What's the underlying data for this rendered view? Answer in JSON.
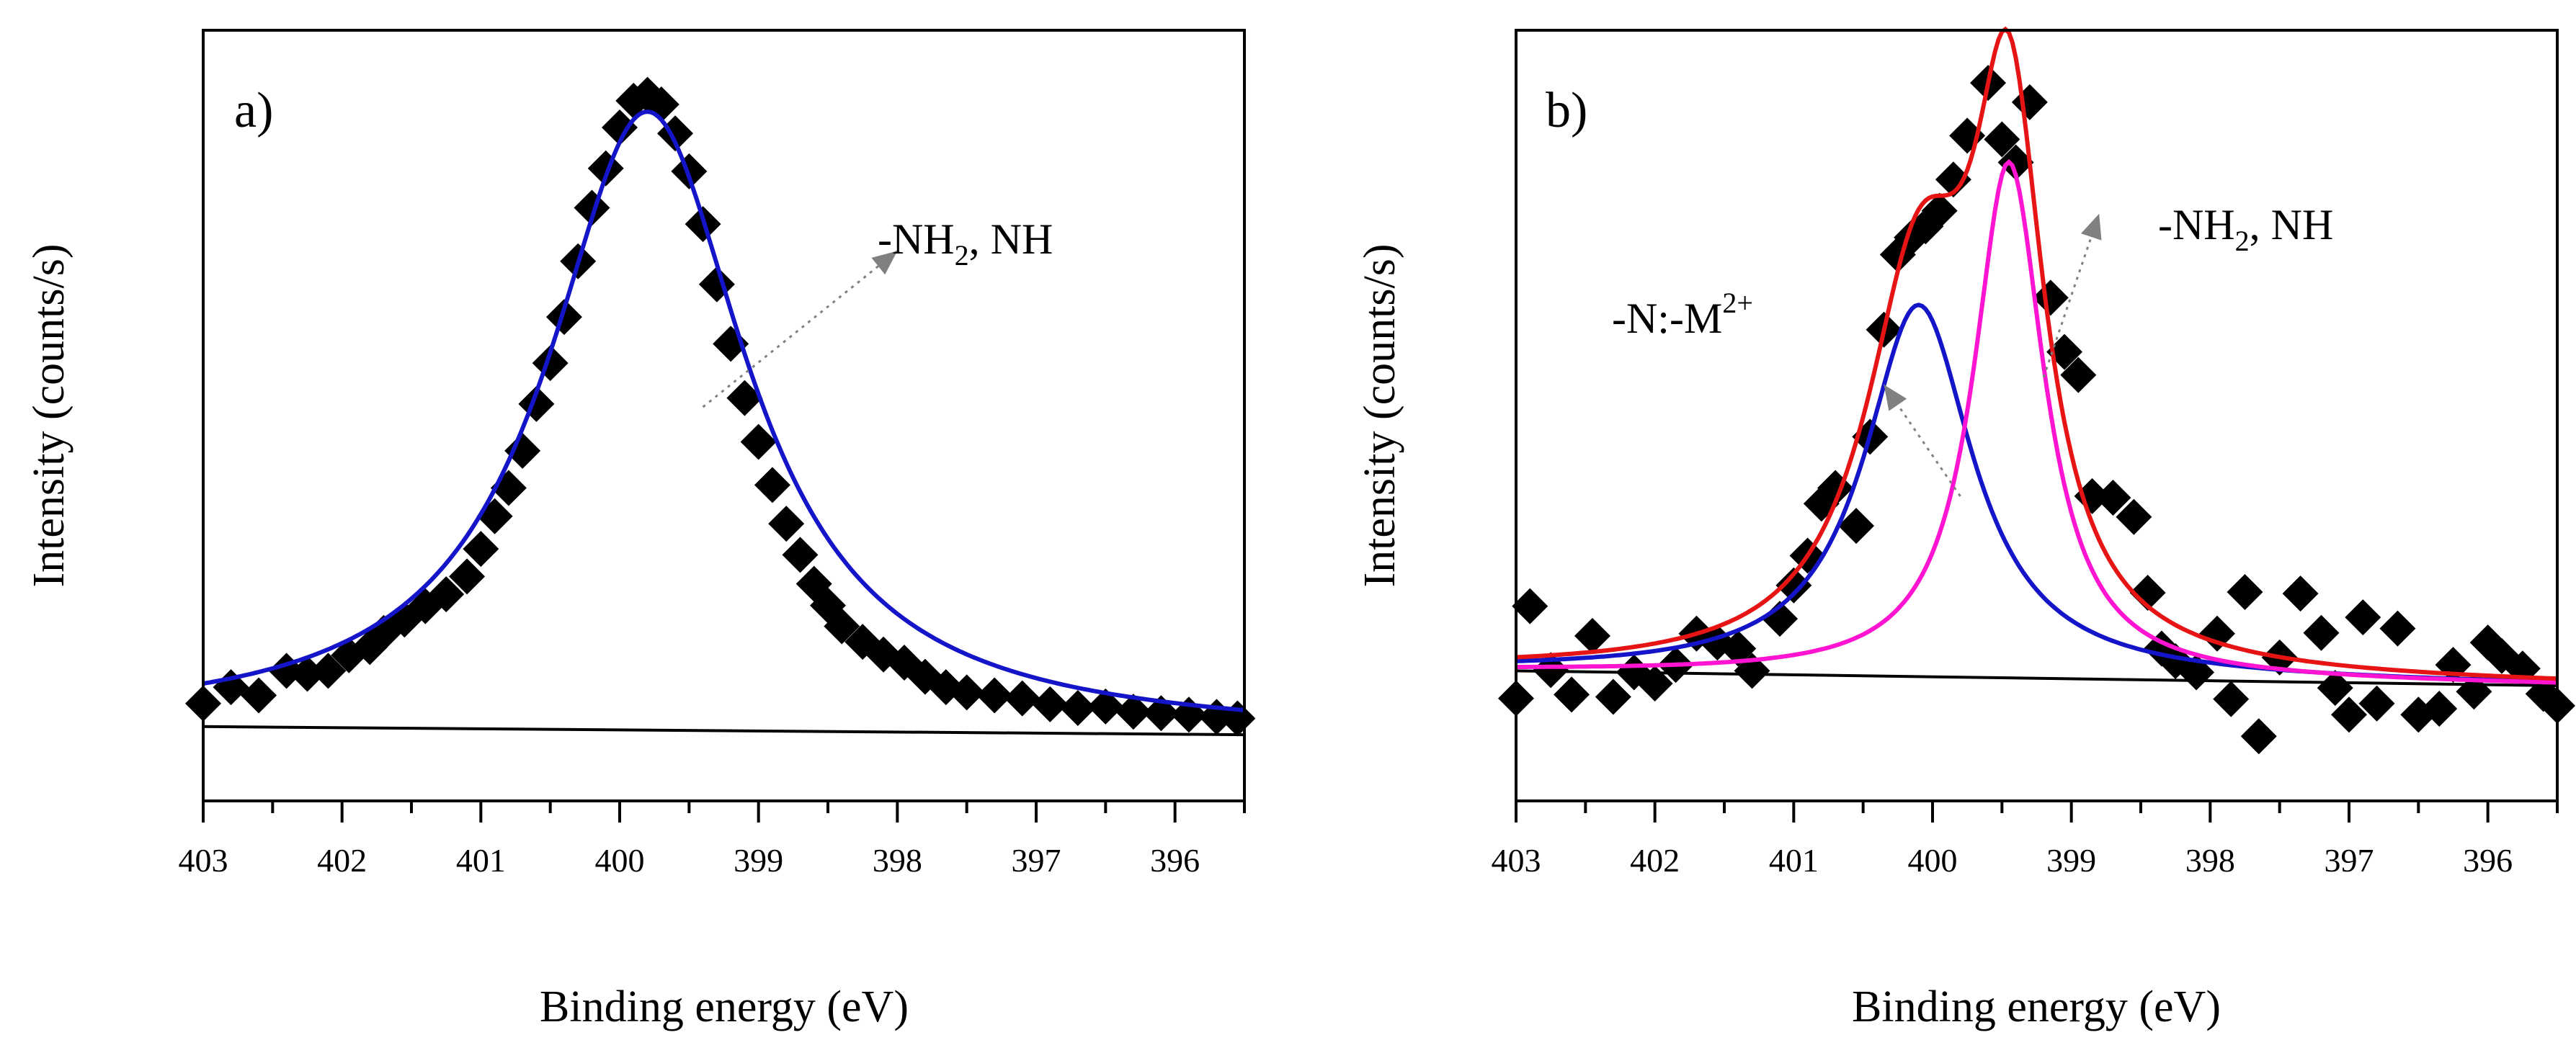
{
  "chart_data": [
    {
      "type": "scatter",
      "panel_label": "a)",
      "xlabel": "Binding energy (eV)",
      "ylabel": "Intensity (counts/s)",
      "xlim": [
        403,
        395.5
      ],
      "ylim": [
        0,
        1
      ],
      "x_ticks": [
        403,
        402,
        401,
        400,
        399,
        398,
        397,
        396
      ],
      "x_tick_labels": [
        "403",
        "402",
        "401",
        "400",
        "399",
        "398",
        "397",
        "396"
      ],
      "annotations": [
        {
          "main": "-NH",
          "sub": "2",
          "rest": ", NH",
          "from": [
            399.4,
            0.53
          ],
          "to": [
            398.0,
            0.74
          ]
        }
      ],
      "scatter_points": [
        [
          403.0,
          0.131
        ],
        [
          402.8,
          0.153
        ],
        [
          402.6,
          0.142
        ],
        [
          402.4,
          0.175
        ],
        [
          402.25,
          0.171
        ],
        [
          402.1,
          0.175
        ],
        [
          401.95,
          0.196
        ],
        [
          401.8,
          0.207
        ],
        [
          401.7,
          0.226
        ],
        [
          401.55,
          0.244
        ],
        [
          401.4,
          0.262
        ],
        [
          401.25,
          0.278
        ],
        [
          401.1,
          0.302
        ],
        [
          401.0,
          0.339
        ],
        [
          400.9,
          0.383
        ],
        [
          400.8,
          0.421
        ],
        [
          400.7,
          0.471
        ],
        [
          400.6,
          0.534
        ],
        [
          400.5,
          0.589
        ],
        [
          400.4,
          0.651
        ],
        [
          400.3,
          0.726
        ],
        [
          400.2,
          0.798
        ],
        [
          400.1,
          0.851
        ],
        [
          400.0,
          0.906
        ],
        [
          399.9,
          0.942
        ],
        [
          399.8,
          0.95
        ],
        [
          399.7,
          0.937
        ],
        [
          399.6,
          0.898
        ],
        [
          399.5,
          0.847
        ],
        [
          399.4,
          0.776
        ],
        [
          399.3,
          0.695
        ],
        [
          399.2,
          0.615
        ],
        [
          399.1,
          0.542
        ],
        [
          399.0,
          0.483
        ],
        [
          398.9,
          0.425
        ],
        [
          398.8,
          0.373
        ],
        [
          398.7,
          0.331
        ],
        [
          398.6,
          0.292
        ],
        [
          398.5,
          0.263
        ],
        [
          398.4,
          0.235
        ],
        [
          398.25,
          0.214
        ],
        [
          398.1,
          0.197
        ],
        [
          397.95,
          0.186
        ],
        [
          397.8,
          0.167
        ],
        [
          397.65,
          0.153
        ],
        [
          397.5,
          0.146
        ],
        [
          397.3,
          0.142
        ],
        [
          397.1,
          0.138
        ],
        [
          396.9,
          0.13
        ],
        [
          396.7,
          0.125
        ],
        [
          396.5,
          0.127
        ],
        [
          396.3,
          0.12
        ],
        [
          396.1,
          0.118
        ],
        [
          395.9,
          0.116
        ],
        [
          395.7,
          0.113
        ],
        [
          395.55,
          0.111
        ]
      ],
      "series": [
        {
          "name": "baseline",
          "color": "#000000",
          "x": [
            403.0,
            395.5
          ],
          "y": [
            0.1,
            0.089
          ]
        },
        {
          "name": "fit",
          "color": "#1414c8",
          "model": "lorentzian",
          "x_range": [
            403.0,
            395.5
          ],
          "center": 399.8,
          "fwhm": 1.75,
          "amplitude": 0.832
        }
      ]
    },
    {
      "type": "scatter",
      "panel_label": "b)",
      "xlabel": "Binding energy (eV)",
      "ylabel": "Intensity (counts/s)",
      "xlim": [
        403,
        395.5
      ],
      "ylim": [
        0,
        1
      ],
      "x_ticks": [
        403,
        402,
        401,
        400,
        399,
        398,
        397,
        396
      ],
      "x_tick_labels": [
        "403",
        "402",
        "401",
        "400",
        "399",
        "398",
        "397",
        "396"
      ],
      "annotations": [
        {
          "main": "-N:-M",
          "sup": "2+",
          "from": [
            399.8,
            0.41
          ],
          "to": [
            400.35,
            0.56
          ]
        },
        {
          "main": "-NH",
          "sub": "2",
          "rest": ", NH",
          "from": [
            399.2,
            0.57
          ],
          "to": [
            398.8,
            0.79
          ]
        }
      ],
      "scatter_points": [
        [
          403.0,
          0.138
        ],
        [
          402.9,
          0.262
        ],
        [
          402.75,
          0.176
        ],
        [
          402.6,
          0.143
        ],
        [
          402.45,
          0.222
        ],
        [
          402.3,
          0.14
        ],
        [
          402.15,
          0.173
        ],
        [
          402.0,
          0.158
        ],
        [
          401.85,
          0.183
        ],
        [
          401.7,
          0.225
        ],
        [
          401.55,
          0.213
        ],
        [
          401.4,
          0.205
        ],
        [
          401.3,
          0.175
        ],
        [
          401.1,
          0.245
        ],
        [
          401.0,
          0.29
        ],
        [
          400.9,
          0.33
        ],
        [
          400.8,
          0.4
        ],
        [
          400.7,
          0.421
        ],
        [
          400.55,
          0.37
        ],
        [
          400.45,
          0.49
        ],
        [
          400.35,
          0.634
        ],
        [
          400.25,
          0.735
        ],
        [
          400.15,
          0.758
        ],
        [
          400.05,
          0.773
        ],
        [
          399.95,
          0.794
        ],
        [
          399.85,
          0.836
        ],
        [
          399.75,
          0.895
        ],
        [
          399.6,
          0.966
        ],
        [
          399.5,
          0.89
        ],
        [
          399.4,
          0.859
        ],
        [
          399.3,
          0.94
        ],
        [
          399.15,
          0.677
        ],
        [
          399.05,
          0.604
        ],
        [
          398.95,
          0.573
        ],
        [
          398.85,
          0.41
        ],
        [
          398.7,
          0.408
        ],
        [
          398.55,
          0.382
        ],
        [
          398.45,
          0.28
        ],
        [
          398.35,
          0.205
        ],
        [
          398.25,
          0.188
        ],
        [
          398.1,
          0.173
        ],
        [
          397.95,
          0.225
        ],
        [
          397.85,
          0.137
        ],
        [
          397.75,
          0.281
        ],
        [
          397.65,
          0.087
        ],
        [
          397.5,
          0.193
        ],
        [
          397.35,
          0.279
        ],
        [
          397.2,
          0.226
        ],
        [
          397.1,
          0.152
        ],
        [
          397.0,
          0.116
        ],
        [
          396.9,
          0.247
        ],
        [
          396.8,
          0.131
        ],
        [
          396.65,
          0.232
        ],
        [
          396.5,
          0.116
        ],
        [
          396.35,
          0.124
        ],
        [
          396.25,
          0.183
        ],
        [
          396.1,
          0.147
        ],
        [
          396.0,
          0.213
        ],
        [
          395.9,
          0.195
        ],
        [
          395.75,
          0.178
        ],
        [
          395.6,
          0.144
        ],
        [
          395.5,
          0.128
        ]
      ],
      "series": [
        {
          "name": "baseline",
          "color": "#000000",
          "x": [
            403.0,
            395.5
          ],
          "y": [
            0.175,
            0.155
          ]
        },
        {
          "name": "N:-M2+ component",
          "color": "#1414c8",
          "model": "lorentzian",
          "x_range": [
            403.0,
            395.5
          ],
          "center": 400.1,
          "fwhm": 0.95,
          "amplitude": 0.5
        },
        {
          "name": "-NH2, NH component",
          "color": "#ff14d2",
          "model": "lorentzian",
          "x_range": [
            403.0,
            395.5
          ],
          "center": 399.45,
          "fwhm": 0.62,
          "amplitude": 0.694
        },
        {
          "name": "envelope",
          "color": "#e61414",
          "model": "sum",
          "x_range": [
            403.0,
            395.5
          ]
        }
      ]
    }
  ]
}
